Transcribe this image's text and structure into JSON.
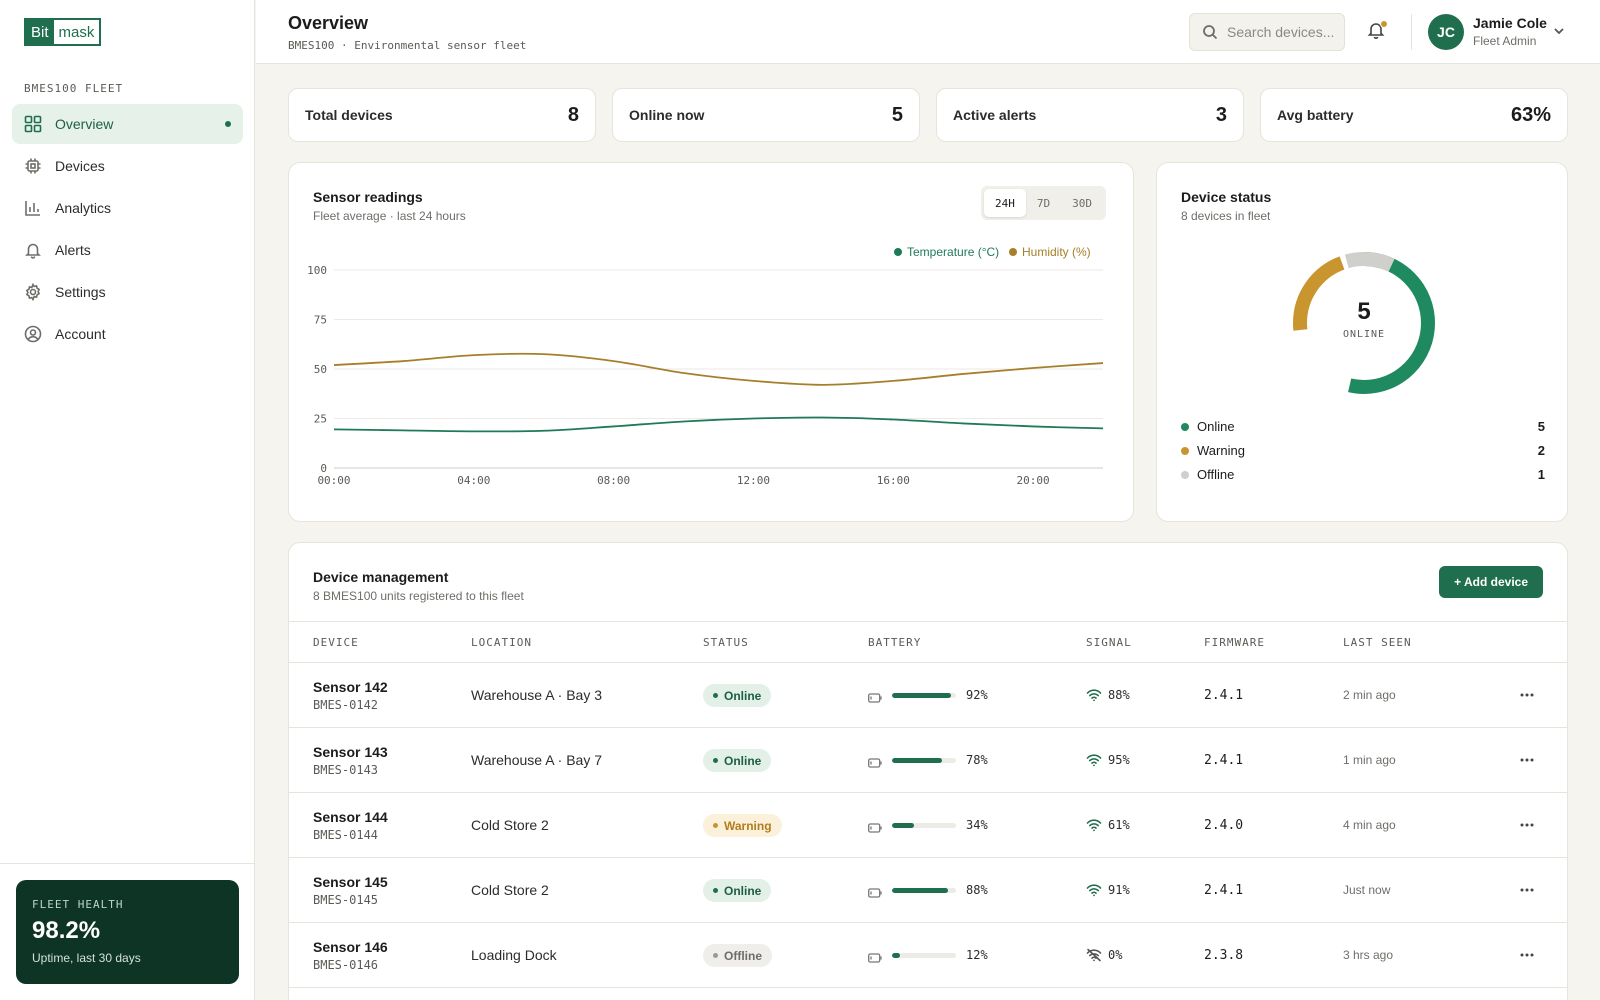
{
  "brand": {
    "part1": "Bit",
    "part2": "mask"
  },
  "sidebar": {
    "fleet_label": "BMES100 FLEET",
    "items": [
      {
        "label": "Overview",
        "icon": "grid-icon",
        "active": true
      },
      {
        "label": "Devices",
        "icon": "chip-icon"
      },
      {
        "label": "Analytics",
        "icon": "bar-chart-icon"
      },
      {
        "label": "Alerts",
        "icon": "bell-icon"
      },
      {
        "label": "Settings",
        "icon": "gear-icon"
      },
      {
        "label": "Account",
        "icon": "user-circle-icon"
      }
    ],
    "health": {
      "label": "FLEET HEALTH",
      "value": "98.2%",
      "sub": "Uptime, last 30 days"
    }
  },
  "header": {
    "title": "Overview",
    "subtitle": "BMES100 · Environmental sensor fleet",
    "search_placeholder": "Search devices...",
    "user": {
      "initials": "JC",
      "name": "Jamie Cole",
      "role": "Fleet Admin"
    }
  },
  "kpis": [
    {
      "label": "Total devices",
      "value": "8"
    },
    {
      "label": "Online now",
      "value": "5"
    },
    {
      "label": "Active alerts",
      "value": "3"
    },
    {
      "label": "Avg battery",
      "value": "63%"
    }
  ],
  "readings": {
    "title": "Sensor readings",
    "subtitle": "Fleet average · last 24 hours",
    "ranges": [
      "24H",
      "7D",
      "30D"
    ],
    "active_range": "24H"
  },
  "chart_data": {
    "type": "line",
    "title": "Sensor readings",
    "x": [
      "00:00",
      "02:00",
      "04:00",
      "06:00",
      "08:00",
      "10:00",
      "12:00",
      "14:00",
      "16:00",
      "18:00",
      "20:00",
      "22:00"
    ],
    "x_ticks": [
      "00:00",
      "04:00",
      "08:00",
      "12:00",
      "16:00",
      "20:00"
    ],
    "y_ticks": [
      "0",
      "25",
      "50",
      "75",
      "100"
    ],
    "ylim": [
      0,
      100
    ],
    "grid": true,
    "legend": "top-right",
    "series": [
      {
        "name": "Temperature (°C)",
        "color": "#1f7a57",
        "values": [
          19.5,
          19,
          18.5,
          18.8,
          21,
          23.5,
          25,
          25.5,
          24.5,
          22.5,
          21,
          20
        ]
      },
      {
        "name": "Humidity (%)",
        "color": "#a77f2a",
        "values": [
          52,
          54,
          57,
          57.5,
          54,
          48,
          44,
          42,
          44,
          47.5,
          50.5,
          53
        ]
      }
    ]
  },
  "status": {
    "title": "Device status",
    "subtitle": "8 devices in fleet",
    "center_value": "5",
    "center_label": "ONLINE",
    "items": [
      {
        "label": "Online",
        "value": "5",
        "color": "#1f8a5f"
      },
      {
        "label": "Warning",
        "value": "2",
        "color": "#c9952e"
      },
      {
        "label": "Offline",
        "value": "1",
        "color": "#cfcfcb"
      }
    ]
  },
  "management": {
    "title": "Device management",
    "subtitle": "8 BMES100 units registered to this fleet",
    "add_label": "+ Add device",
    "columns": [
      "DEVICE",
      "LOCATION",
      "STATUS",
      "BATTERY",
      "SIGNAL",
      "FIRMWARE",
      "LAST SEEN"
    ],
    "rows": [
      {
        "name": "Sensor 142",
        "id": "BMES-0142",
        "location": "Warehouse A · Bay 3",
        "status": "Online",
        "battery_pct": 92,
        "battery": "92%",
        "signal": "88%",
        "firmware": "2.4.1",
        "last_seen": "2 min ago"
      },
      {
        "name": "Sensor 143",
        "id": "BMES-0143",
        "location": "Warehouse A · Bay 7",
        "status": "Online",
        "battery_pct": 78,
        "battery": "78%",
        "signal": "95%",
        "firmware": "2.4.1",
        "last_seen": "1 min ago"
      },
      {
        "name": "Sensor 144",
        "id": "BMES-0144",
        "location": "Cold Store 2",
        "status": "Warning",
        "battery_pct": 34,
        "battery": "34%",
        "signal": "61%",
        "firmware": "2.4.0",
        "last_seen": "4 min ago"
      },
      {
        "name": "Sensor 145",
        "id": "BMES-0145",
        "location": "Cold Store 2",
        "status": "Online",
        "battery_pct": 88,
        "battery": "88%",
        "signal": "91%",
        "firmware": "2.4.1",
        "last_seen": "Just now"
      },
      {
        "name": "Sensor 146",
        "id": "BMES-0146",
        "location": "Loading Dock",
        "status": "Offline",
        "battery_pct": 12,
        "battery": "12%",
        "signal": "0%",
        "firmware": "2.3.8",
        "last_seen": "3 hrs ago"
      }
    ]
  }
}
